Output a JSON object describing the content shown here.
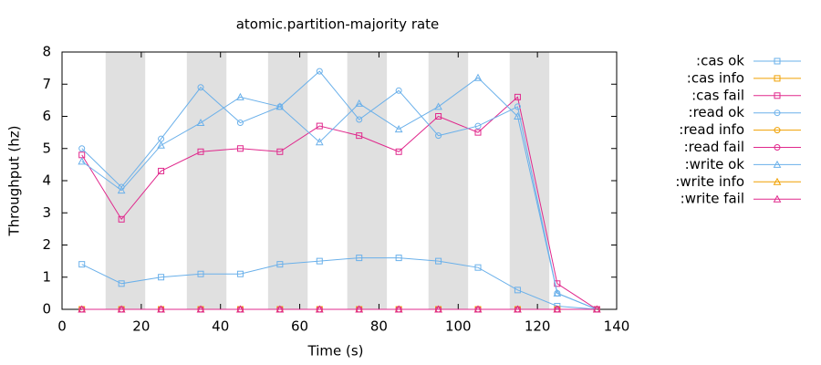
{
  "chart_data": {
    "type": "line",
    "title": "atomic.partition-majority rate",
    "xlabel": "Time (s)",
    "ylabel": "Throughput (hz)",
    "x": [
      5,
      15,
      25,
      35,
      45,
      55,
      65,
      75,
      85,
      95,
      105,
      115,
      125,
      135
    ],
    "xlim": [
      0,
      140
    ],
    "xticks": [
      0,
      20,
      40,
      60,
      80,
      100,
      120,
      140
    ],
    "ylim": [
      0,
      8
    ],
    "yticks": [
      0,
      1,
      2,
      3,
      4,
      5,
      6,
      7,
      8
    ],
    "shaded_regions": [
      [
        11,
        21
      ],
      [
        31.5,
        41.5
      ],
      [
        52,
        62
      ],
      [
        72,
        82
      ],
      [
        92.5,
        102.5
      ],
      [
        113,
        123
      ]
    ],
    "shade_color": "#e0e0e0",
    "legend": "outside right",
    "series": [
      {
        "name": ":cas ok",
        "color": "#6ab0ea",
        "marker": "square",
        "values": [
          1.4,
          0.8,
          1.0,
          1.1,
          1.1,
          1.4,
          1.5,
          1.6,
          1.6,
          1.5,
          1.3,
          0.6,
          0.1,
          0
        ]
      },
      {
        "name": ":cas info",
        "color": "#f0a000",
        "marker": "square",
        "values": [
          0,
          0,
          0,
          0,
          0,
          0,
          0,
          0,
          0,
          0,
          0,
          0,
          0,
          0
        ]
      },
      {
        "name": ":cas fail",
        "color": "#e0288c",
        "marker": "square",
        "values": [
          4.8,
          2.8,
          4.3,
          4.9,
          5.0,
          4.9,
          5.7,
          5.4,
          4.9,
          6.0,
          5.5,
          6.6,
          0.8,
          0
        ]
      },
      {
        "name": ":read ok",
        "color": "#6ab0ea",
        "marker": "circle",
        "values": [
          5.0,
          3.8,
          5.3,
          6.9,
          5.8,
          6.3,
          7.4,
          5.9,
          6.8,
          5.4,
          5.7,
          6.3,
          0.5,
          0
        ]
      },
      {
        "name": ":read info",
        "color": "#f0a000",
        "marker": "circle",
        "values": [
          0,
          0,
          0,
          0,
          0,
          0,
          0,
          0,
          0,
          0,
          0,
          0,
          0,
          0
        ]
      },
      {
        "name": ":read fail",
        "color": "#e0288c",
        "marker": "circle",
        "values": [
          0,
          0,
          0,
          0,
          0,
          0,
          0,
          0,
          0,
          0,
          0,
          0,
          0,
          0
        ]
      },
      {
        "name": ":write ok",
        "color": "#6ab0ea",
        "marker": "triangle",
        "values": [
          4.6,
          3.7,
          5.1,
          5.8,
          6.6,
          6.3,
          5.2,
          6.4,
          5.6,
          6.3,
          7.2,
          6.0,
          0.5,
          0
        ]
      },
      {
        "name": ":write info",
        "color": "#f0a000",
        "marker": "triangle",
        "values": [
          0,
          0,
          0,
          0,
          0,
          0,
          0,
          0,
          0,
          0,
          0,
          0,
          0,
          0
        ]
      },
      {
        "name": ":write fail",
        "color": "#e0288c",
        "marker": "triangle",
        "values": [
          0,
          0,
          0,
          0,
          0,
          0,
          0,
          0,
          0,
          0,
          0,
          0,
          0,
          0
        ]
      }
    ]
  }
}
